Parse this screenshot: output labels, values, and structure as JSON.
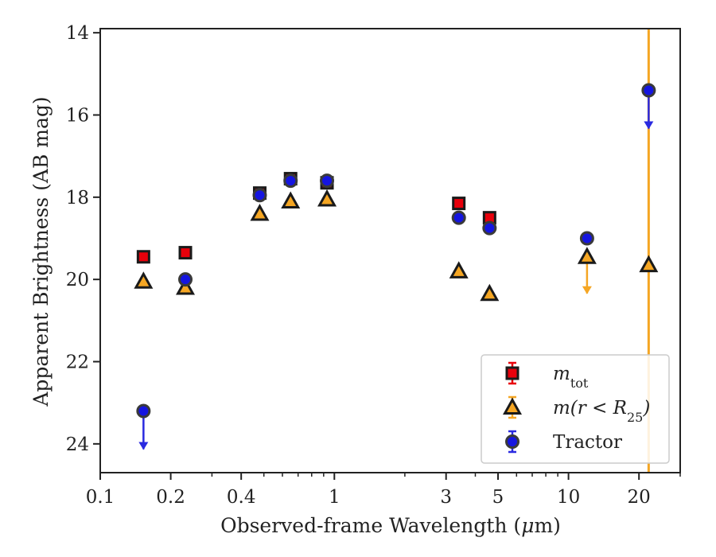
{
  "chart_data": {
    "type": "scatter",
    "xlabel": "Observed-frame Wavelength (μm)",
    "xlabel_parts": {
      "prefix": "Observed-frame Wavelength (",
      "mu": "μ",
      "suffix": "m)"
    },
    "ylabel": "Apparent Brightness (AB mag)",
    "xscale": "log",
    "yaxis_inverted": true,
    "xlim": [
      0.1,
      30
    ],
    "ylim": [
      24.7,
      13.9
    ],
    "xticks": [
      0.1,
      0.2,
      0.4,
      1,
      3,
      5,
      10,
      20
    ],
    "xtick_labels": [
      "0.1",
      "0.2",
      "0.4",
      "1",
      "3",
      "5",
      "10",
      "20"
    ],
    "yticks": [
      14,
      16,
      18,
      20,
      22,
      24
    ],
    "ytick_labels": [
      "14",
      "16",
      "18",
      "20",
      "22",
      "24"
    ],
    "grid": false,
    "legend_position": "lower-right",
    "vertical_line": {
      "x": 22,
      "color": "#f5a623"
    },
    "series": [
      {
        "name": "m_tot",
        "legend_label": {
          "main": "m",
          "sub": "tot"
        },
        "marker": "square",
        "color": "#e8000b",
        "errcolor": "#e8000b",
        "points": [
          {
            "x": 0.153,
            "y": 19.45
          },
          {
            "x": 0.231,
            "y": 19.35
          },
          {
            "x": 0.48,
            "y": 17.9
          },
          {
            "x": 0.65,
            "y": 17.55
          },
          {
            "x": 0.93,
            "y": 17.65
          },
          {
            "x": 3.4,
            "y": 18.15
          },
          {
            "x": 4.6,
            "y": 18.5
          }
        ]
      },
      {
        "name": "m(r < R25)",
        "legend_label": {
          "main": "m(r < R",
          "sub": "25",
          "end": ")"
        },
        "marker": "triangle",
        "color": "#f5a623",
        "errcolor": "#f5a623",
        "points": [
          {
            "x": 0.153,
            "y": 20.05
          },
          {
            "x": 0.231,
            "y": 20.2
          },
          {
            "x": 0.48,
            "y": 18.4
          },
          {
            "x": 0.65,
            "y": 18.1
          },
          {
            "x": 0.93,
            "y": 18.05
          },
          {
            "x": 3.4,
            "y": 19.8
          },
          {
            "x": 4.6,
            "y": 20.35
          },
          {
            "x": 12.0,
            "y": 19.45,
            "upper_limit": true
          },
          {
            "x": 22.0,
            "y": 19.65
          }
        ]
      },
      {
        "name": "Tractor",
        "legend_label": {
          "main": "Tractor"
        },
        "marker": "circle",
        "color": "#1515e0",
        "errcolor": "#2a2ae0",
        "points": [
          {
            "x": 0.153,
            "y": 23.2,
            "upper_limit": true
          },
          {
            "x": 0.231,
            "y": 20.0
          },
          {
            "x": 0.48,
            "y": 17.95
          },
          {
            "x": 0.65,
            "y": 17.6
          },
          {
            "x": 0.93,
            "y": 17.6
          },
          {
            "x": 3.4,
            "y": 18.5
          },
          {
            "x": 4.6,
            "y": 18.75
          },
          {
            "x": 12.0,
            "y": 19.0
          },
          {
            "x": 22.0,
            "y": 15.4,
            "upper_limit": true
          }
        ]
      }
    ]
  }
}
